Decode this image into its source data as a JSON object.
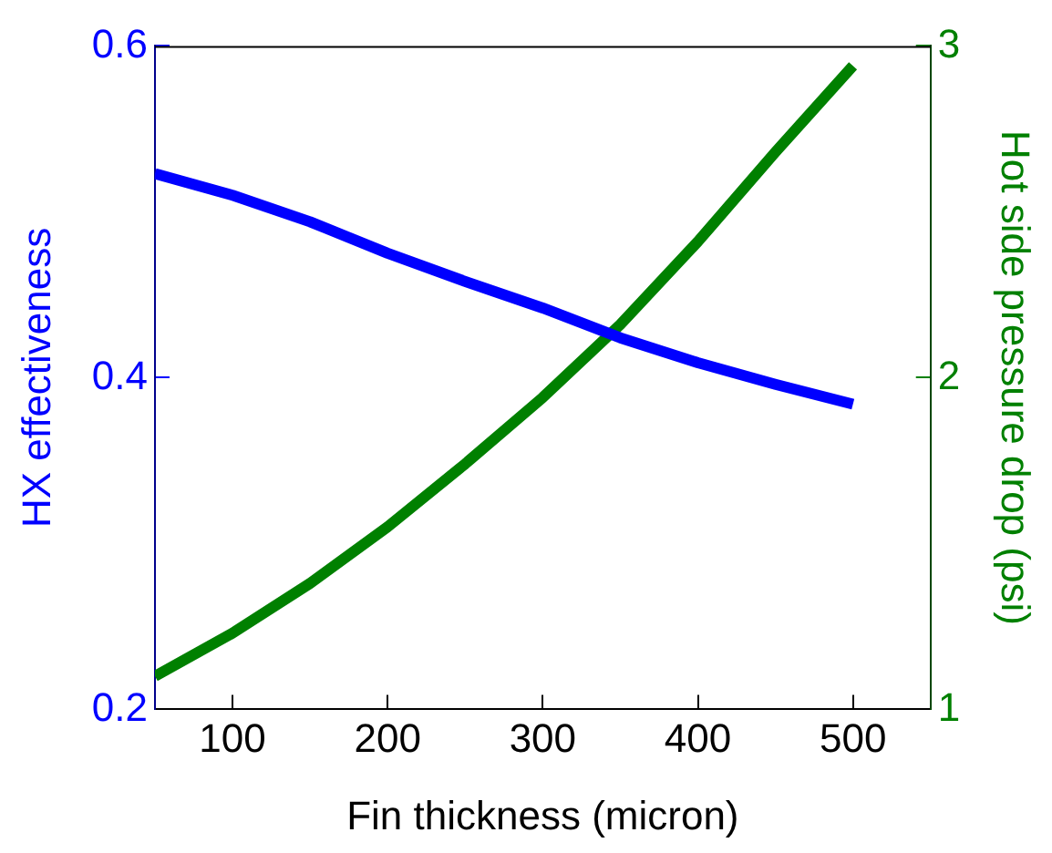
{
  "chart_data": {
    "type": "line",
    "xlabel": "Fin thickness (micron)",
    "ylabel": "HX effectiveness",
    "y2label": "Hot side pressure drop (psi)",
    "x": [
      50,
      100,
      150,
      200,
      250,
      300,
      350,
      400,
      450,
      500
    ],
    "xlim": [
      50,
      550
    ],
    "xticks": [
      100,
      200,
      300,
      400,
      500
    ],
    "ylim": [
      0.2,
      0.6
    ],
    "yticks": [
      0.2,
      0.4,
      0.6
    ],
    "y2lim": [
      1,
      3
    ],
    "y2ticks": [
      1,
      2,
      3
    ],
    "series": [
      {
        "color": "#0000ff",
        "values": [
          0.523,
          0.51,
          0.494,
          0.475,
          0.458,
          0.442,
          0.424,
          0.409,
          0.396,
          0.384
        ]
      },
      {
        "color": "#008000",
        "axis": "y2",
        "values": [
          1.1,
          1.23,
          1.38,
          1.55,
          1.74,
          1.94,
          2.16,
          2.41,
          2.68,
          2.94
        ]
      }
    ],
    "grid": false,
    "legend": false,
    "marker": "none",
    "line_style": "solid"
  }
}
